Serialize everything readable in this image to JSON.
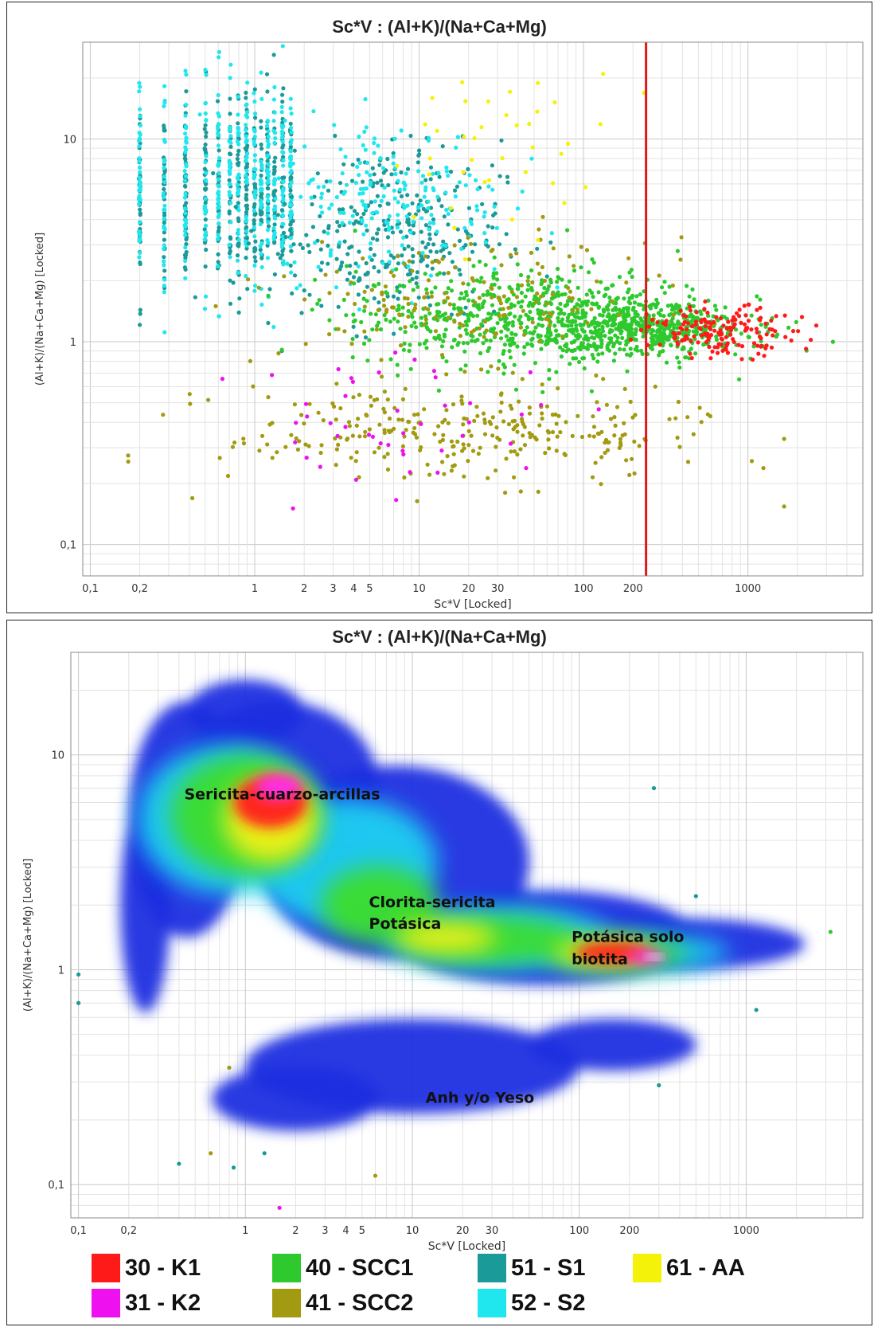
{
  "chart_data": [
    {
      "type": "scatter",
      "title": "Sc*V : (Al+K)/(Na+Ca+Mg)",
      "xlabel": "Sc*V [Locked]",
      "ylabel": "(Al+K)/(Na+Ca+Mg) [Locked]",
      "xscale": "log",
      "yscale": "log",
      "xlim": [
        0.09,
        5000
      ],
      "ylim": [
        0.07,
        30
      ],
      "x_ticks": [
        "0,1",
        "0,2",
        "1",
        "2",
        "3",
        "4",
        "5",
        "10",
        "20",
        "30",
        "100",
        "200",
        "1000"
      ],
      "y_ticks": [
        "0,1",
        "1",
        "10"
      ],
      "grid": true,
      "reference_line": {
        "orientation": "vertical",
        "x": 240,
        "color": "#e0181c"
      },
      "series": [
        {
          "name": "30 - K1",
          "color": "#ff1a1a"
        },
        {
          "name": "31 - K2",
          "color": "#ee10ee"
        },
        {
          "name": "40 - SCC1",
          "color": "#2ec92e"
        },
        {
          "name": "41 - SCC2",
          "color": "#a29a10"
        },
        {
          "name": "51 - S1",
          "color": "#1a9a98"
        },
        {
          "name": "52 - S2",
          "color": "#20e6ee"
        },
        {
          "name": "61 - AA",
          "color": "#f5f20a"
        }
      ]
    },
    {
      "type": "heatmap",
      "title": "Sc*V : (Al+K)/(Na+Ca+Mg)",
      "xlabel": "Sc*V [Locked]",
      "ylabel": "(Al+K)/(Na+Ca+Mg) [Locked]",
      "xscale": "log",
      "yscale": "log",
      "xlim": [
        0.09,
        5000
      ],
      "ylim": [
        0.07,
        30
      ],
      "x_ticks": [
        "0,1",
        "0,2",
        "1",
        "2",
        "3",
        "4",
        "5",
        "10",
        "20",
        "30",
        "100",
        "200",
        "1000"
      ],
      "y_ticks": [
        "0,1",
        "1",
        "10"
      ],
      "grid": true,
      "annotations": [
        {
          "text": "Sericita-cuarzo-arcillas",
          "x": 0.43,
          "y": 6.2
        },
        {
          "text": "Clorita-sericita",
          "x": 5.5,
          "y": 1.95
        },
        {
          "text": "Potásica",
          "x": 5.5,
          "y": 1.55
        },
        {
          "text": "Potásica solo",
          "x": 90,
          "y": 1.35
        },
        {
          "text": "biotita",
          "x": 90,
          "y": 1.06
        },
        {
          "text": "Anh y/o Yeso",
          "x": 12,
          "y": 0.24
        }
      ]
    }
  ],
  "legend": [
    {
      "label": "30 - K1",
      "color": "#ff1a1a"
    },
    {
      "label": "31 - K2",
      "color": "#ee10ee"
    },
    {
      "label": "40 - SCC1",
      "color": "#2ec92e"
    },
    {
      "label": "41 - SCC2",
      "color": "#a29a10"
    },
    {
      "label": "51 - S1",
      "color": "#1a9a98"
    },
    {
      "label": "52 - S2",
      "color": "#20e6ee"
    },
    {
      "label": "61 - AA",
      "color": "#f5f20a"
    }
  ]
}
